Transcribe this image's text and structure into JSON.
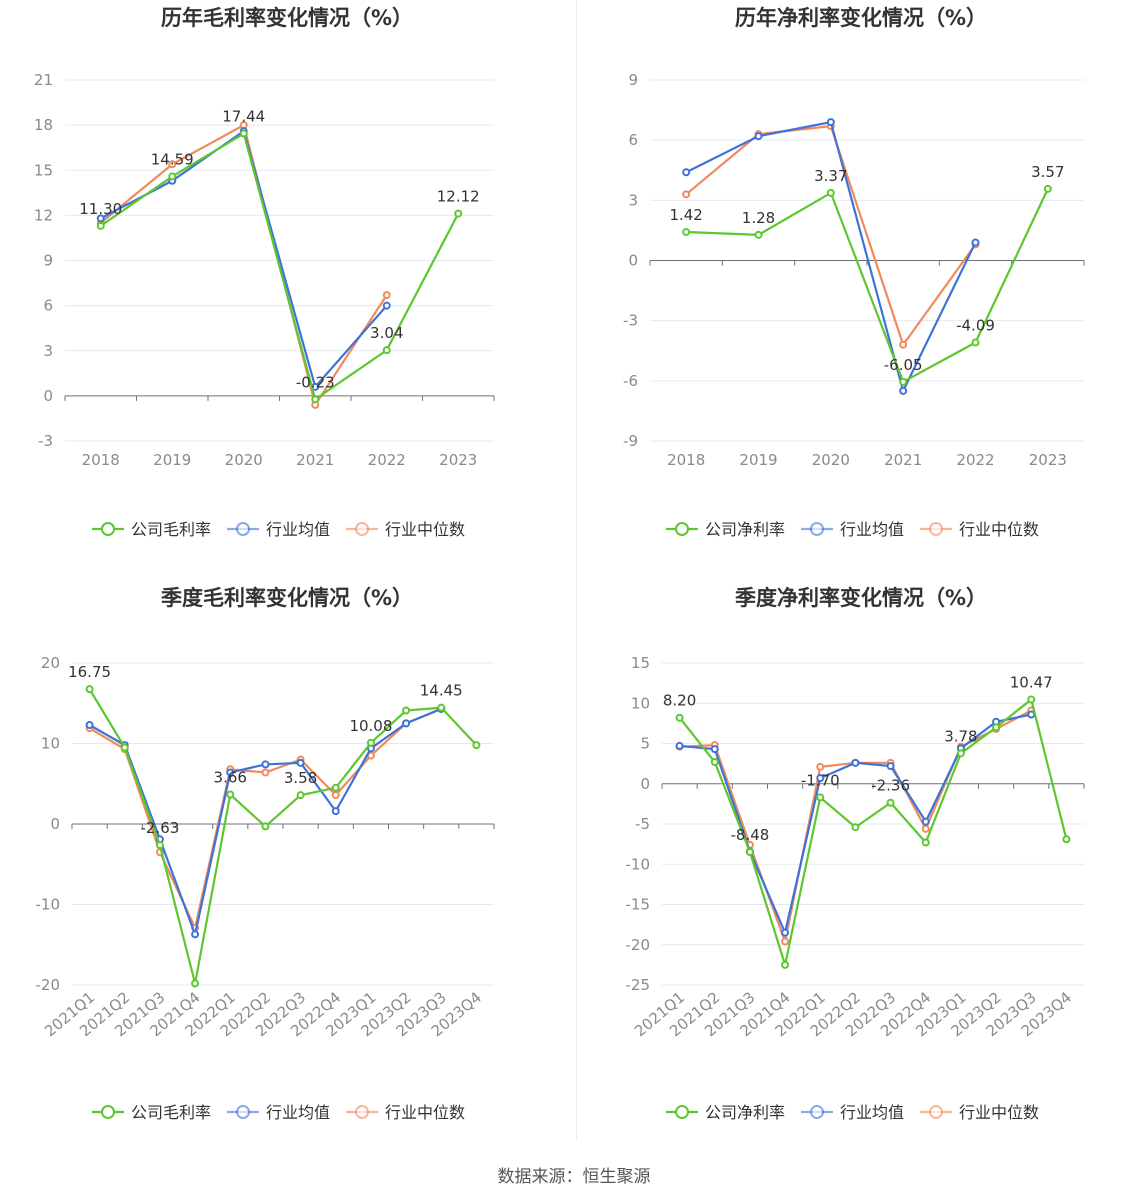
{
  "source_text": "数据来源：恒生聚源",
  "colors": {
    "company": "#5cc72f",
    "industry_avg": "#3f72d8",
    "industry_median": "#f08a5d"
  },
  "chart_data": [
    {
      "type": "line",
      "title": "历年毛利率变化情况（%）",
      "categories": [
        "2018",
        "2019",
        "2020",
        "2021",
        "2022",
        "2023"
      ],
      "ylim": [
        -3,
        21
      ],
      "yticks": [
        -3,
        0,
        3,
        6,
        9,
        12,
        15,
        18,
        21
      ],
      "series": [
        {
          "name": "公司毛利率",
          "key": "company",
          "values": [
            11.3,
            14.59,
            17.44,
            -0.23,
            3.04,
            12.12
          ]
        },
        {
          "name": "行业均值",
          "key": "industry_avg",
          "values": [
            11.8,
            14.3,
            17.6,
            0.6,
            6.0,
            null
          ]
        },
        {
          "name": "行业中位数",
          "key": "industry_median",
          "values": [
            11.5,
            15.4,
            18.0,
            -0.6,
            6.7,
            null
          ]
        }
      ],
      "data_labels": [
        "11.30",
        "14.59",
        "17.44",
        "-0.23",
        "3.04",
        "12.12"
      ]
    },
    {
      "type": "line",
      "title": "历年净利率变化情况（%）",
      "categories": [
        "2018",
        "2019",
        "2020",
        "2021",
        "2022",
        "2023"
      ],
      "ylim": [
        -9,
        9
      ],
      "yticks": [
        -9,
        -6,
        -3,
        0,
        3,
        6,
        9
      ],
      "series": [
        {
          "name": "公司净利率",
          "key": "company",
          "values": [
            1.42,
            1.28,
            3.37,
            -6.05,
            -4.09,
            3.57
          ]
        },
        {
          "name": "行业均值",
          "key": "industry_avg",
          "values": [
            4.4,
            6.2,
            6.9,
            -6.5,
            0.9,
            null
          ]
        },
        {
          "name": "行业中位数",
          "key": "industry_median",
          "values": [
            3.3,
            6.3,
            6.7,
            -4.2,
            0.8,
            null
          ]
        }
      ],
      "data_labels": [
        "1.42",
        "1.28",
        "3.37",
        "-6.05",
        "-4.09",
        "3.57"
      ]
    },
    {
      "type": "line",
      "title": "季度毛利率变化情况（%）",
      "categories": [
        "2021Q1",
        "2021Q2",
        "2021Q3",
        "2021Q4",
        "2022Q1",
        "2022Q2",
        "2022Q3",
        "2022Q4",
        "2023Q1",
        "2023Q2",
        "2023Q3",
        "2023Q4"
      ],
      "ylim": [
        -20,
        20
      ],
      "yticks": [
        -20,
        -10,
        0,
        10,
        20
      ],
      "series": [
        {
          "name": "公司毛利率",
          "key": "company",
          "values": [
            16.75,
            9.5,
            -2.63,
            -19.8,
            3.66,
            -0.3,
            3.58,
            4.5,
            10.08,
            14.1,
            14.45,
            9.8
          ]
        },
        {
          "name": "行业均值",
          "key": "industry_avg",
          "values": [
            12.3,
            9.8,
            -1.9,
            -13.7,
            6.4,
            7.4,
            7.6,
            1.6,
            9.4,
            12.5,
            14.3,
            null
          ]
        },
        {
          "name": "行业中位数",
          "key": "industry_median",
          "values": [
            11.9,
            9.3,
            -3.5,
            -12.9,
            6.8,
            6.4,
            8.0,
            3.6,
            8.5,
            12.5,
            14.3,
            null
          ]
        }
      ],
      "data_labels": [
        "16.75",
        "",
        "-2.63",
        "",
        "3.66",
        "",
        "3.58",
        "",
        "10.08",
        "",
        "14.45",
        ""
      ]
    },
    {
      "type": "line",
      "title": "季度净利率变化情况（%）",
      "categories": [
        "2021Q1",
        "2021Q2",
        "2021Q3",
        "2021Q4",
        "2022Q1",
        "2022Q2",
        "2022Q3",
        "2022Q4",
        "2023Q1",
        "2023Q2",
        "2023Q3",
        "2023Q4"
      ],
      "ylim": [
        -25,
        15
      ],
      "yticks": [
        -25,
        -20,
        -15,
        -10,
        -5,
        0,
        5,
        10,
        15
      ],
      "series": [
        {
          "name": "公司净利率",
          "key": "company",
          "values": [
            8.2,
            2.7,
            -8.48,
            -22.5,
            -1.7,
            -5.4,
            -2.36,
            -7.3,
            3.78,
            7.0,
            10.47,
            -6.9
          ]
        },
        {
          "name": "行业均值",
          "key": "industry_avg",
          "values": [
            4.7,
            4.3,
            -8.4,
            -18.5,
            0.7,
            2.6,
            2.2,
            -4.7,
            4.4,
            7.7,
            8.6,
            null
          ]
        },
        {
          "name": "行业中位数",
          "key": "industry_median",
          "values": [
            4.6,
            4.8,
            -7.6,
            -19.6,
            2.1,
            2.6,
            2.6,
            -5.6,
            4.6,
            6.8,
            9.1,
            null
          ]
        }
      ],
      "data_labels": [
        "8.20",
        "",
        "-8.48",
        "",
        "-1.70",
        "",
        "-2.36",
        "",
        "3.78",
        "",
        "10.47",
        ""
      ]
    }
  ]
}
